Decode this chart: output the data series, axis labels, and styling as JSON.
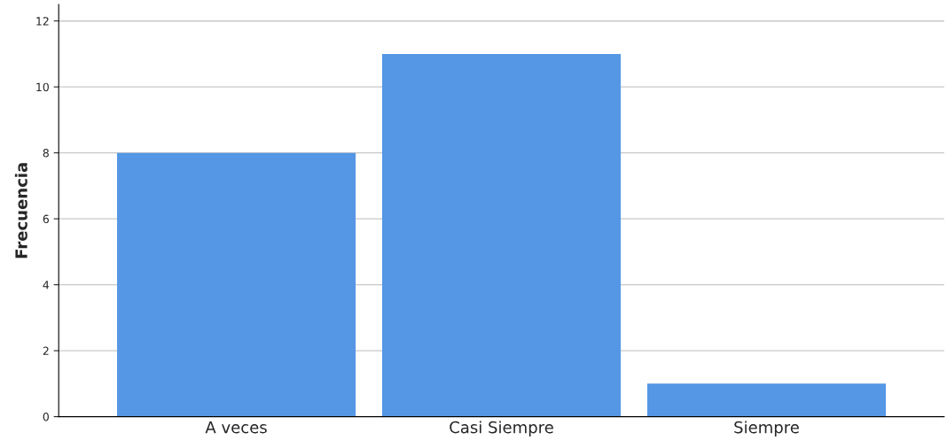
{
  "chart_data": {
    "type": "bar",
    "ylabel": "Frecuencia",
    "categories": [
      "A veces",
      "Casi Siempre",
      "Siempre"
    ],
    "values": [
      8,
      11,
      1
    ],
    "color": "#5597e5",
    "ylim": [
      0,
      12.5
    ],
    "yticks": [
      0,
      2,
      4,
      6,
      8,
      10,
      12
    ],
    "grid": "y"
  }
}
